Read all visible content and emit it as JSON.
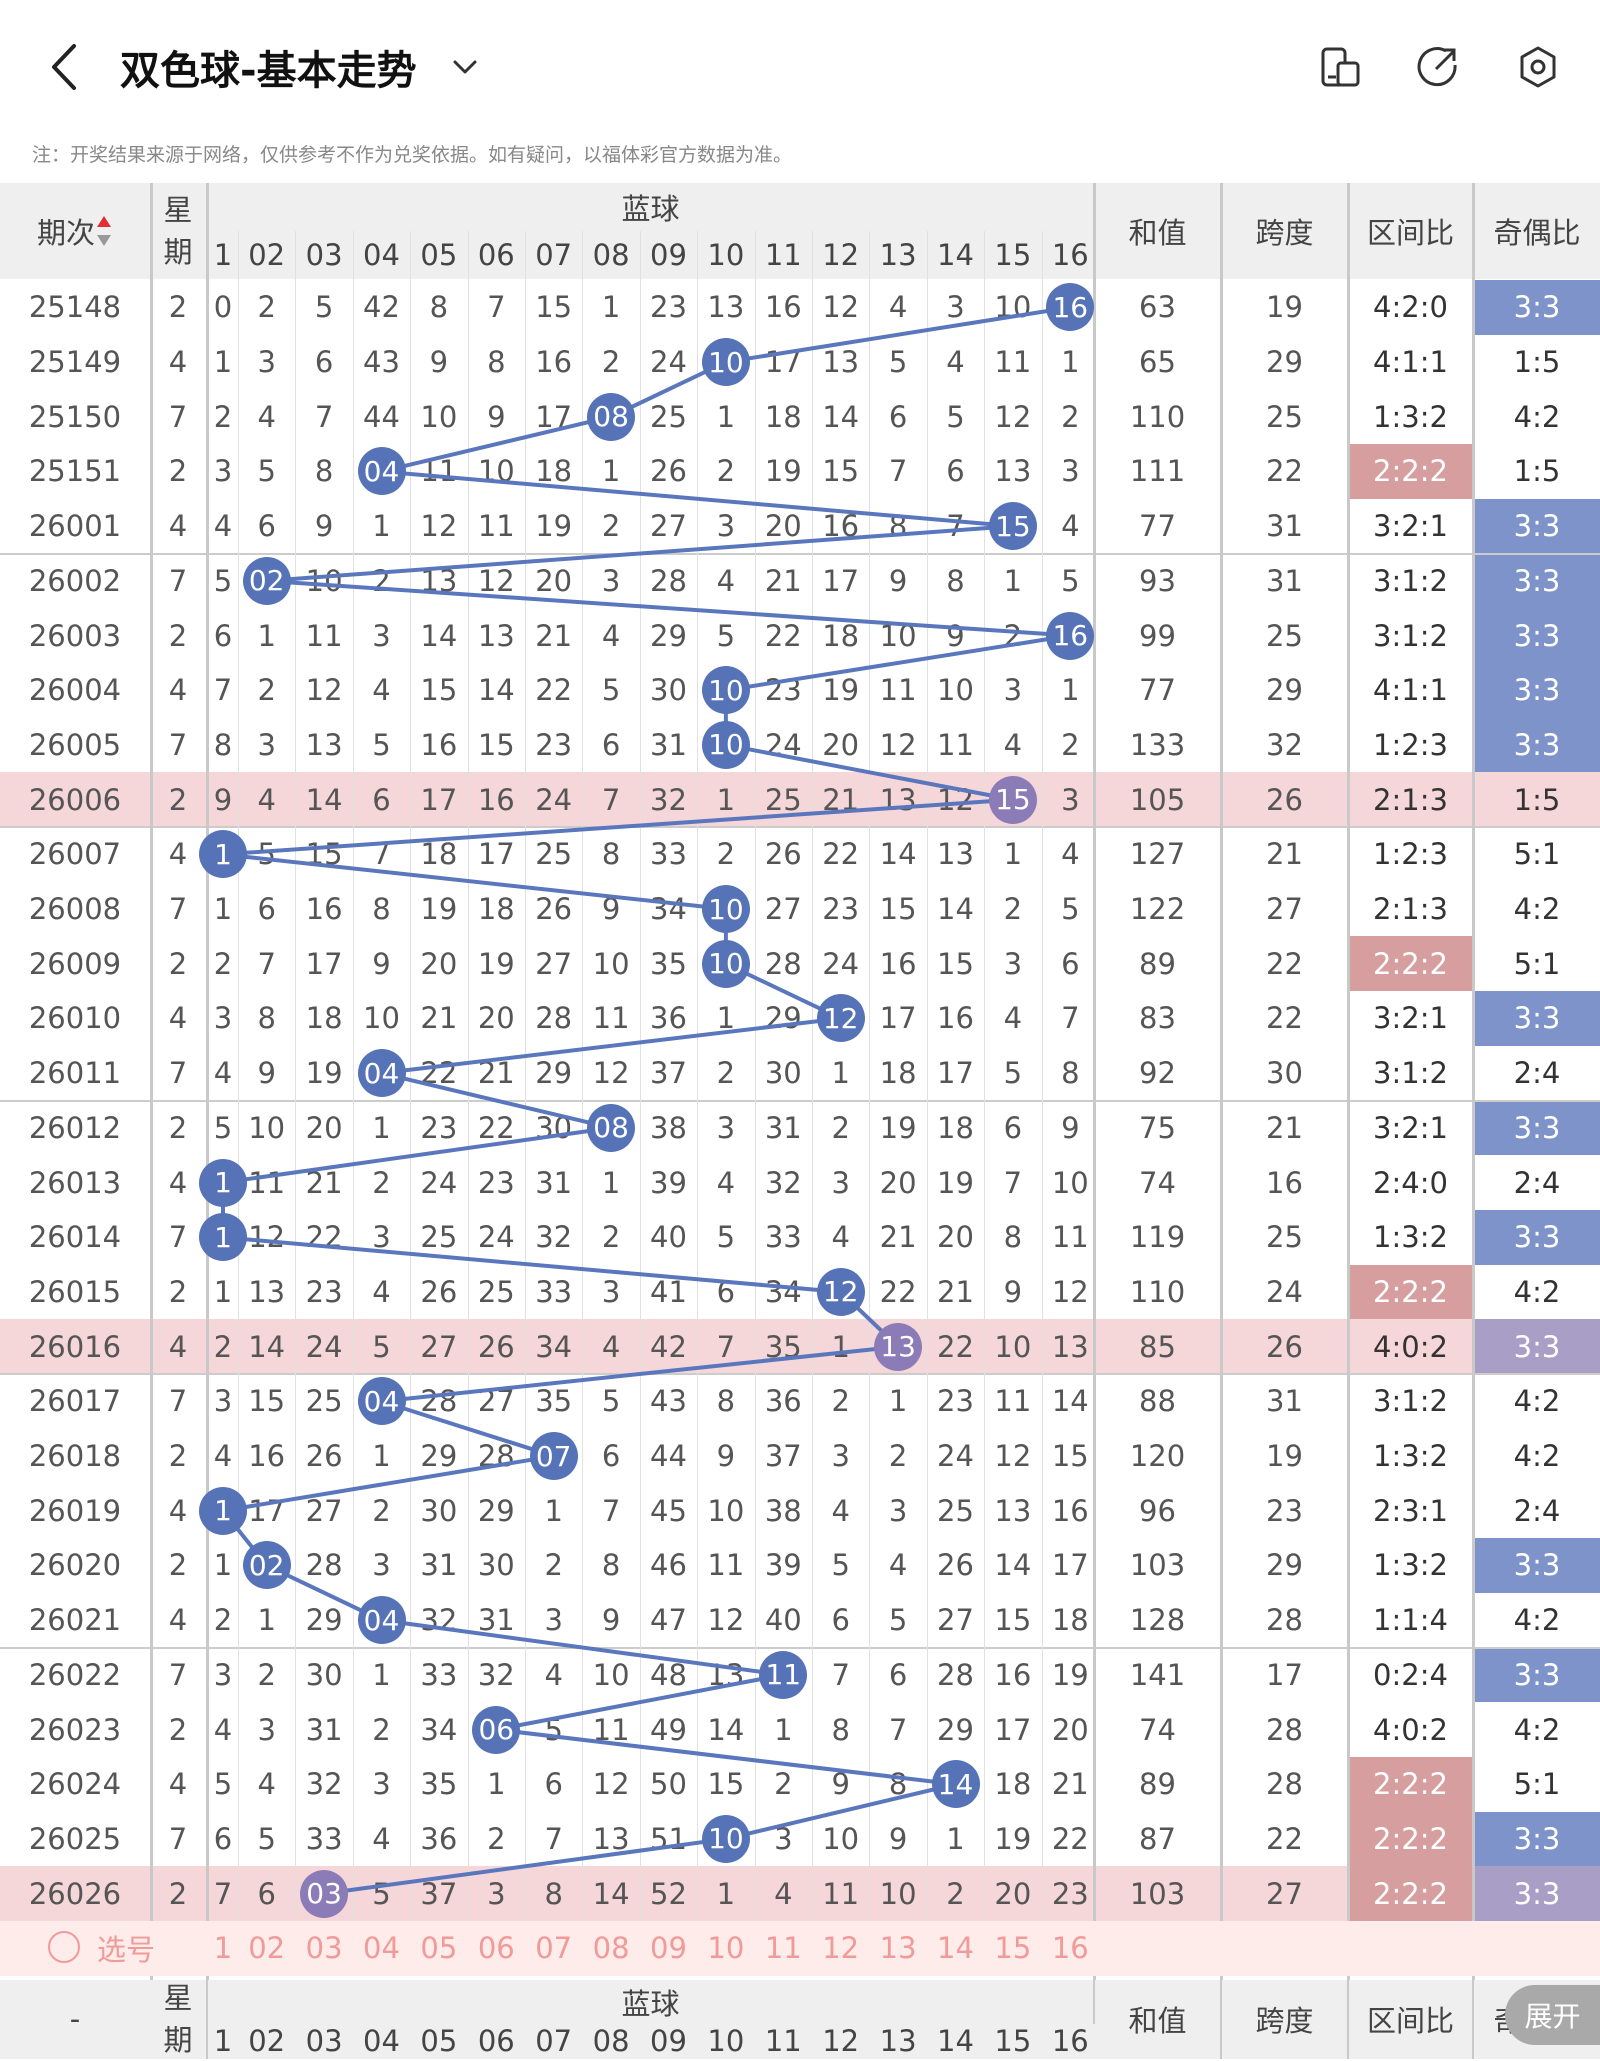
{
  "header": {
    "title": "双色球-基本走势",
    "notice": "注：开奖结果来源于网络，仅供参考不作为兑奖依据。如有疑问，以福体彩官方数据为准。"
  },
  "table": {
    "col_issue": "期次",
    "col_week_1": "星",
    "col_week_2": "期",
    "col_blue": "蓝球",
    "col_sum": "和值",
    "col_span": "跨度",
    "col_zone": "区间比",
    "col_oddeven": "奇偶比",
    "blue_numbers": [
      "1",
      "02",
      "03",
      "04",
      "05",
      "06",
      "07",
      "08",
      "09",
      "10",
      "11",
      "12",
      "13",
      "14",
      "15",
      "16"
    ],
    "rows": [
      {
        "issue": "25148",
        "week": "2",
        "cells": [
          "0",
          "2",
          "5",
          "42",
          "8",
          "7",
          "15",
          "1",
          "23",
          "13",
          "16",
          "12",
          "4",
          "3",
          "10",
          "16"
        ],
        "blue": 16,
        "sum": "63",
        "span": "19",
        "zone": "4:2:0",
        "oe": "3:3",
        "hl": false,
        "zone_c": "none",
        "oe_c": "blue"
      },
      {
        "issue": "25149",
        "week": "4",
        "cells": [
          "1",
          "3",
          "6",
          "43",
          "9",
          "8",
          "16",
          "2",
          "24",
          "10",
          "17",
          "13",
          "5",
          "4",
          "11",
          "1"
        ],
        "blue": 10,
        "sum": "65",
        "span": "29",
        "zone": "4:1:1",
        "oe": "1:5",
        "hl": false,
        "zone_c": "none",
        "oe_c": "none"
      },
      {
        "issue": "25150",
        "week": "7",
        "cells": [
          "2",
          "4",
          "7",
          "44",
          "10",
          "9",
          "17",
          "08",
          "25",
          "1",
          "18",
          "14",
          "6",
          "5",
          "12",
          "2"
        ],
        "blue": 8,
        "sum": "110",
        "span": "25",
        "zone": "1:3:2",
        "oe": "4:2",
        "hl": false,
        "zone_c": "none",
        "oe_c": "none"
      },
      {
        "issue": "25151",
        "week": "2",
        "cells": [
          "3",
          "5",
          "8",
          "04",
          "11",
          "10",
          "18",
          "1",
          "26",
          "2",
          "19",
          "15",
          "7",
          "6",
          "13",
          "3"
        ],
        "blue": 4,
        "sum": "111",
        "span": "22",
        "zone": "2:2:2",
        "oe": "1:5",
        "hl": false,
        "zone_c": "red",
        "oe_c": "none"
      },
      {
        "issue": "26001",
        "week": "4",
        "cells": [
          "4",
          "6",
          "9",
          "1",
          "12",
          "11",
          "19",
          "2",
          "27",
          "3",
          "20",
          "16",
          "8",
          "7",
          "15",
          "4"
        ],
        "blue": 15,
        "sum": "77",
        "span": "31",
        "zone": "3:2:1",
        "oe": "3:3",
        "hl": false,
        "zone_c": "none",
        "oe_c": "blue"
      },
      {
        "issue": "26002",
        "week": "7",
        "cells": [
          "5",
          "02",
          "10",
          "2",
          "13",
          "12",
          "20",
          "3",
          "28",
          "4",
          "21",
          "17",
          "9",
          "8",
          "1",
          "5"
        ],
        "blue": 2,
        "sum": "93",
        "span": "31",
        "zone": "3:1:2",
        "oe": "3:3",
        "hl": false,
        "zone_c": "none",
        "oe_c": "blue"
      },
      {
        "issue": "26003",
        "week": "2",
        "cells": [
          "6",
          "1",
          "11",
          "3",
          "14",
          "13",
          "21",
          "4",
          "29",
          "5",
          "22",
          "18",
          "10",
          "9",
          "2",
          "16"
        ],
        "blue": 16,
        "sum": "99",
        "span": "25",
        "zone": "3:1:2",
        "oe": "3:3",
        "hl": false,
        "zone_c": "none",
        "oe_c": "blue"
      },
      {
        "issue": "26004",
        "week": "4",
        "cells": [
          "7",
          "2",
          "12",
          "4",
          "15",
          "14",
          "22",
          "5",
          "30",
          "10",
          "23",
          "19",
          "11",
          "10",
          "3",
          "1"
        ],
        "blue": 10,
        "sum": "77",
        "span": "29",
        "zone": "4:1:1",
        "oe": "3:3",
        "hl": false,
        "zone_c": "none",
        "oe_c": "blue"
      },
      {
        "issue": "26005",
        "week": "7",
        "cells": [
          "8",
          "3",
          "13",
          "5",
          "16",
          "15",
          "23",
          "6",
          "31",
          "10",
          "24",
          "20",
          "12",
          "11",
          "4",
          "2"
        ],
        "blue": 10,
        "sum": "133",
        "span": "32",
        "zone": "1:2:3",
        "oe": "3:3",
        "hl": false,
        "zone_c": "none",
        "oe_c": "blue"
      },
      {
        "issue": "26006",
        "week": "2",
        "cells": [
          "9",
          "4",
          "14",
          "6",
          "17",
          "16",
          "24",
          "7",
          "32",
          "1",
          "25",
          "21",
          "13",
          "12",
          "15",
          "3"
        ],
        "blue": 15,
        "sum": "105",
        "span": "26",
        "zone": "2:1:3",
        "oe": "1:5",
        "hl": true,
        "zone_c": "none",
        "oe_c": "none"
      },
      {
        "issue": "26007",
        "week": "4",
        "cells": [
          "1",
          "5",
          "15",
          "7",
          "18",
          "17",
          "25",
          "8",
          "33",
          "2",
          "26",
          "22",
          "14",
          "13",
          "1",
          "4"
        ],
        "blue": 1,
        "sum": "127",
        "span": "21",
        "zone": "1:2:3",
        "oe": "5:1",
        "hl": false,
        "zone_c": "none",
        "oe_c": "none"
      },
      {
        "issue": "26008",
        "week": "7",
        "cells": [
          "1",
          "6",
          "16",
          "8",
          "19",
          "18",
          "26",
          "9",
          "34",
          "10",
          "27",
          "23",
          "15",
          "14",
          "2",
          "5"
        ],
        "blue": 10,
        "sum": "122",
        "span": "27",
        "zone": "2:1:3",
        "oe": "4:2",
        "hl": false,
        "zone_c": "none",
        "oe_c": "none"
      },
      {
        "issue": "26009",
        "week": "2",
        "cells": [
          "2",
          "7",
          "17",
          "9",
          "20",
          "19",
          "27",
          "10",
          "35",
          "10",
          "28",
          "24",
          "16",
          "15",
          "3",
          "6"
        ],
        "blue": 10,
        "sum": "89",
        "span": "22",
        "zone": "2:2:2",
        "oe": "5:1",
        "hl": false,
        "zone_c": "red",
        "oe_c": "none"
      },
      {
        "issue": "26010",
        "week": "4",
        "cells": [
          "3",
          "8",
          "18",
          "10",
          "21",
          "20",
          "28",
          "11",
          "36",
          "1",
          "29",
          "12",
          "17",
          "16",
          "4",
          "7"
        ],
        "blue": 12,
        "sum": "83",
        "span": "22",
        "zone": "3:2:1",
        "oe": "3:3",
        "hl": false,
        "zone_c": "none",
        "oe_c": "blue"
      },
      {
        "issue": "26011",
        "week": "7",
        "cells": [
          "4",
          "9",
          "19",
          "04",
          "22",
          "21",
          "29",
          "12",
          "37",
          "2",
          "30",
          "1",
          "18",
          "17",
          "5",
          "8"
        ],
        "blue": 4,
        "sum": "92",
        "span": "30",
        "zone": "3:1:2",
        "oe": "2:4",
        "hl": false,
        "zone_c": "none",
        "oe_c": "none"
      },
      {
        "issue": "26012",
        "week": "2",
        "cells": [
          "5",
          "10",
          "20",
          "1",
          "23",
          "22",
          "30",
          "08",
          "38",
          "3",
          "31",
          "2",
          "19",
          "18",
          "6",
          "9"
        ],
        "blue": 8,
        "sum": "75",
        "span": "21",
        "zone": "3:2:1",
        "oe": "3:3",
        "hl": false,
        "zone_c": "none",
        "oe_c": "blue"
      },
      {
        "issue": "26013",
        "week": "4",
        "cells": [
          "1",
          "11",
          "21",
          "2",
          "24",
          "23",
          "31",
          "1",
          "39",
          "4",
          "32",
          "3",
          "20",
          "19",
          "7",
          "10"
        ],
        "blue": 1,
        "sum": "74",
        "span": "16",
        "zone": "2:4:0",
        "oe": "2:4",
        "hl": false,
        "zone_c": "none",
        "oe_c": "none"
      },
      {
        "issue": "26014",
        "week": "7",
        "cells": [
          "1",
          "12",
          "22",
          "3",
          "25",
          "24",
          "32",
          "2",
          "40",
          "5",
          "33",
          "4",
          "21",
          "20",
          "8",
          "11"
        ],
        "blue": 1,
        "sum": "119",
        "span": "25",
        "zone": "1:3:2",
        "oe": "3:3",
        "hl": false,
        "zone_c": "none",
        "oe_c": "blue"
      },
      {
        "issue": "26015",
        "week": "2",
        "cells": [
          "1",
          "13",
          "23",
          "4",
          "26",
          "25",
          "33",
          "3",
          "41",
          "6",
          "34",
          "12",
          "22",
          "21",
          "9",
          "12"
        ],
        "blue": 12,
        "sum": "110",
        "span": "24",
        "zone": "2:2:2",
        "oe": "4:2",
        "hl": false,
        "zone_c": "red",
        "oe_c": "none"
      },
      {
        "issue": "26016",
        "week": "4",
        "cells": [
          "2",
          "14",
          "24",
          "5",
          "27",
          "26",
          "34",
          "4",
          "42",
          "7",
          "35",
          "1",
          "13",
          "22",
          "10",
          "13"
        ],
        "blue": 13,
        "sum": "85",
        "span": "26",
        "zone": "4:0:2",
        "oe": "3:3",
        "hl": true,
        "zone_c": "none",
        "oe_c": "purple"
      },
      {
        "issue": "26017",
        "week": "7",
        "cells": [
          "3",
          "15",
          "25",
          "04",
          "28",
          "27",
          "35",
          "5",
          "43",
          "8",
          "36",
          "2",
          "1",
          "23",
          "11",
          "14"
        ],
        "blue": 4,
        "sum": "88",
        "span": "31",
        "zone": "3:1:2",
        "oe": "4:2",
        "hl": false,
        "zone_c": "none",
        "oe_c": "none"
      },
      {
        "issue": "26018",
        "week": "2",
        "cells": [
          "4",
          "16",
          "26",
          "1",
          "29",
          "28",
          "07",
          "6",
          "44",
          "9",
          "37",
          "3",
          "2",
          "24",
          "12",
          "15"
        ],
        "blue": 7,
        "sum": "120",
        "span": "19",
        "zone": "1:3:2",
        "oe": "4:2",
        "hl": false,
        "zone_c": "none",
        "oe_c": "none"
      },
      {
        "issue": "26019",
        "week": "4",
        "cells": [
          "1",
          "17",
          "27",
          "2",
          "30",
          "29",
          "1",
          "7",
          "45",
          "10",
          "38",
          "4",
          "3",
          "25",
          "13",
          "16"
        ],
        "blue": 1,
        "sum": "96",
        "span": "23",
        "zone": "2:3:1",
        "oe": "2:4",
        "hl": false,
        "zone_c": "none",
        "oe_c": "none"
      },
      {
        "issue": "26020",
        "week": "2",
        "cells": [
          "1",
          "02",
          "28",
          "3",
          "31",
          "30",
          "2",
          "8",
          "46",
          "11",
          "39",
          "5",
          "4",
          "26",
          "14",
          "17"
        ],
        "blue": 2,
        "sum": "103",
        "span": "29",
        "zone": "1:3:2",
        "oe": "3:3",
        "hl": false,
        "zone_c": "none",
        "oe_c": "blue"
      },
      {
        "issue": "26021",
        "week": "4",
        "cells": [
          "2",
          "1",
          "29",
          "04",
          "32",
          "31",
          "3",
          "9",
          "47",
          "12",
          "40",
          "6",
          "5",
          "27",
          "15",
          "18"
        ],
        "blue": 4,
        "sum": "128",
        "span": "28",
        "zone": "1:1:4",
        "oe": "4:2",
        "hl": false,
        "zone_c": "none",
        "oe_c": "none"
      },
      {
        "issue": "26022",
        "week": "7",
        "cells": [
          "3",
          "2",
          "30",
          "1",
          "33",
          "32",
          "4",
          "10",
          "48",
          "13",
          "11",
          "7",
          "6",
          "28",
          "16",
          "19"
        ],
        "blue": 11,
        "sum": "141",
        "span": "17",
        "zone": "0:2:4",
        "oe": "3:3",
        "hl": false,
        "zone_c": "none",
        "oe_c": "blue"
      },
      {
        "issue": "26023",
        "week": "2",
        "cells": [
          "4",
          "3",
          "31",
          "2",
          "34",
          "06",
          "5",
          "11",
          "49",
          "14",
          "1",
          "8",
          "7",
          "29",
          "17",
          "20"
        ],
        "blue": 6,
        "sum": "74",
        "span": "28",
        "zone": "4:0:2",
        "oe": "4:2",
        "hl": false,
        "zone_c": "none",
        "oe_c": "none"
      },
      {
        "issue": "26024",
        "week": "4",
        "cells": [
          "5",
          "4",
          "32",
          "3",
          "35",
          "1",
          "6",
          "12",
          "50",
          "15",
          "2",
          "9",
          "8",
          "14",
          "18",
          "21"
        ],
        "blue": 14,
        "sum": "89",
        "span": "28",
        "zone": "2:2:2",
        "oe": "5:1",
        "hl": false,
        "zone_c": "red",
        "oe_c": "none"
      },
      {
        "issue": "26025",
        "week": "7",
        "cells": [
          "6",
          "5",
          "33",
          "4",
          "36",
          "2",
          "7",
          "13",
          "51",
          "10",
          "3",
          "10",
          "9",
          "1",
          "19",
          "22"
        ],
        "blue": 10,
        "sum": "87",
        "span": "22",
        "zone": "2:2:2",
        "oe": "3:3",
        "hl": false,
        "zone_c": "red",
        "oe_c": "blue"
      },
      {
        "issue": "26026",
        "week": "2",
        "cells": [
          "7",
          "6",
          "03",
          "5",
          "37",
          "3",
          "8",
          "14",
          "52",
          "1",
          "4",
          "11",
          "10",
          "2",
          "20",
          "23"
        ],
        "blue": 3,
        "sum": "103",
        "span": "27",
        "zone": "2:2:2",
        "oe": "3:3",
        "hl": true,
        "zone_c": "red",
        "oe_c": "purple"
      }
    ],
    "select_label": "选号",
    "footer_dash": "-",
    "expand_label": "展开"
  },
  "colors": {
    "ball": "#5673b8",
    "ball_highlight": "#8b7bb6",
    "row_highlight": "#f5d6d9",
    "zone_red": "#d79e9f",
    "oe_blue": "#7d93c9",
    "oe_purple": "#a89ec6",
    "select_row": "#fdece9",
    "line": "#5a77bd"
  },
  "icons": {
    "back": "chevron-left-icon",
    "dropdown": "chevron-down-icon",
    "screen": "split-screen-icon",
    "share": "share-arrow-icon",
    "settings": "gear-icon",
    "sort": "sort-arrows-icon"
  }
}
